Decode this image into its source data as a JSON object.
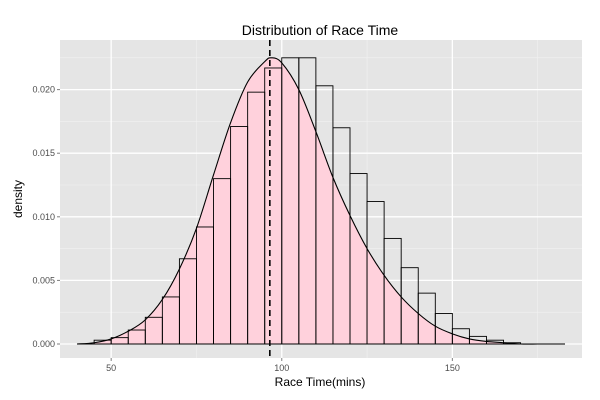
{
  "chart_data": {
    "type": "bar",
    "title": "Distribution of Race Time",
    "xlabel": "Race Time(mins)",
    "ylabel": "density",
    "xlim": [
      35,
      188
    ],
    "ylim": [
      -0.0011,
      0.0239
    ],
    "x_ticks": [
      50,
      100,
      150
    ],
    "y_ticks": [
      0.0,
      0.005,
      0.01,
      0.015,
      0.02
    ],
    "y_tick_labels": [
      "0.000",
      "0.005",
      "0.010",
      "0.015",
      "0.020"
    ],
    "grid": true,
    "bin_width": 5,
    "histogram": {
      "bin_starts": [
        45,
        50,
        55,
        60,
        65,
        70,
        75,
        80,
        85,
        90,
        95,
        100,
        105,
        110,
        115,
        120,
        125,
        130,
        135,
        140,
        145,
        150,
        155,
        160,
        165
      ],
      "density": [
        0.0003,
        0.0005,
        0.0011,
        0.0021,
        0.0037,
        0.0067,
        0.0092,
        0.013,
        0.0171,
        0.0198,
        0.0217,
        0.0225,
        0.0225,
        0.0203,
        0.017,
        0.0134,
        0.0112,
        0.0083,
        0.006,
        0.004,
        0.0024,
        0.0012,
        0.0006,
        0.0003,
        0.0001
      ]
    },
    "density_curve": {
      "x": [
        40,
        45,
        50,
        55,
        60,
        65,
        70,
        75,
        80,
        85,
        90,
        95,
        97,
        100,
        105,
        110,
        115,
        120,
        125,
        130,
        135,
        140,
        145,
        150,
        155,
        160,
        165,
        170,
        175,
        178,
        183
      ],
      "y": [
        0.0,
        0.0001,
        0.0004,
        0.001,
        0.0019,
        0.0035,
        0.0059,
        0.0091,
        0.0133,
        0.0174,
        0.0206,
        0.0222,
        0.0225,
        0.0221,
        0.02,
        0.0167,
        0.0131,
        0.0101,
        0.0075,
        0.0054,
        0.0037,
        0.0024,
        0.0014,
        0.0008,
        0.0004,
        0.0002,
        0.0001,
        0.0,
        0.0,
        0.0,
        0.0
      ]
    },
    "mean_line_x": 96.5,
    "baseline_range": [
      40,
      183
    ],
    "colors": {
      "panel_background": "#e5e5e5",
      "grid_major": "#ffffff",
      "grid_minor": "#f2f2f2",
      "fill": "#ffd1dc",
      "outline": "#000000"
    }
  }
}
